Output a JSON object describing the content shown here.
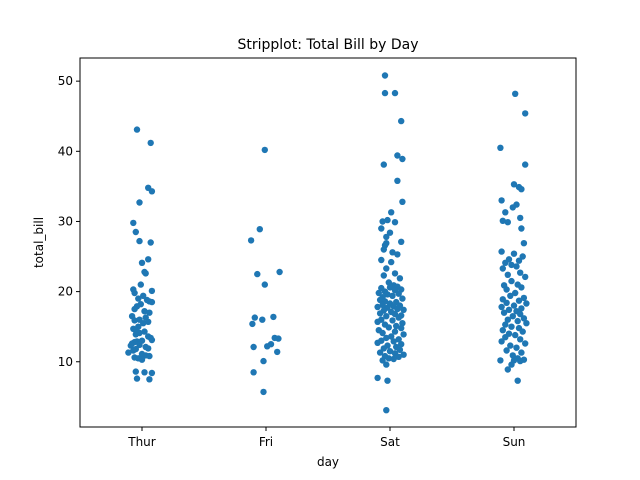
{
  "chart_data": {
    "type": "scatter",
    "subtype": "stripplot",
    "title": "Stripplot: Total Bill by Day",
    "xlabel": "day",
    "ylabel": "total_bill",
    "categories": [
      "Thur",
      "Fri",
      "Sat",
      "Sun"
    ],
    "ylim": [
      0.7,
      53.3
    ],
    "yticks": [
      10,
      20,
      30,
      40,
      50
    ],
    "grid": false,
    "marker_color": "#1f77b4",
    "series": [
      {
        "category": "Thur",
        "points": [
          {
            "o": -0.04,
            "v": 43.1
          },
          {
            "o": 0.07,
            "v": 41.2
          },
          {
            "o": 0.05,
            "v": 34.8
          },
          {
            "o": 0.08,
            "v": 34.3
          },
          {
            "o": -0.02,
            "v": 32.7
          },
          {
            "o": -0.07,
            "v": 29.8
          },
          {
            "o": -0.05,
            "v": 28.5
          },
          {
            "o": -0.02,
            "v": 27.2
          },
          {
            "o": 0.07,
            "v": 27.0
          },
          {
            "o": 0.05,
            "v": 24.6
          },
          {
            "o": 0.0,
            "v": 24.1
          },
          {
            "o": 0.02,
            "v": 22.8
          },
          {
            "o": 0.03,
            "v": 22.6
          },
          {
            "o": -0.01,
            "v": 21.0
          },
          {
            "o": -0.07,
            "v": 20.3
          },
          {
            "o": 0.08,
            "v": 20.1
          },
          {
            "o": -0.06,
            "v": 19.8
          },
          {
            "o": 0.01,
            "v": 19.4
          },
          {
            "o": -0.03,
            "v": 19.0
          },
          {
            "o": 0.04,
            "v": 18.8
          },
          {
            "o": 0.06,
            "v": 18.6
          },
          {
            "o": 0.08,
            "v": 18.5
          },
          {
            "o": -0.01,
            "v": 18.2
          },
          {
            "o": -0.04,
            "v": 17.9
          },
          {
            "o": -0.06,
            "v": 17.5
          },
          {
            "o": 0.02,
            "v": 17.2
          },
          {
            "o": 0.06,
            "v": 17.0
          },
          {
            "o": -0.08,
            "v": 16.5
          },
          {
            "o": 0.03,
            "v": 16.3
          },
          {
            "o": -0.02,
            "v": 16.0
          },
          {
            "o": -0.06,
            "v": 15.9
          },
          {
            "o": 0.05,
            "v": 15.7
          },
          {
            "o": 0.01,
            "v": 15.5
          },
          {
            "o": -0.03,
            "v": 15.0
          },
          {
            "o": -0.07,
            "v": 14.7
          },
          {
            "o": -0.05,
            "v": 14.5
          },
          {
            "o": 0.02,
            "v": 14.3
          },
          {
            "o": -0.02,
            "v": 14.1
          },
          {
            "o": -0.05,
            "v": 13.9
          },
          {
            "o": 0.05,
            "v": 13.6
          },
          {
            "o": 0.07,
            "v": 13.4
          },
          {
            "o": 0.08,
            "v": 13.1
          },
          {
            "o": 0.0,
            "v": 13.0
          },
          {
            "o": -0.04,
            "v": 12.9
          },
          {
            "o": -0.06,
            "v": 12.8
          },
          {
            "o": -0.08,
            "v": 12.6
          },
          {
            "o": -0.02,
            "v": 12.4
          },
          {
            "o": -0.09,
            "v": 12.3
          },
          {
            "o": 0.03,
            "v": 12.1
          },
          {
            "o": 0.05,
            "v": 11.9
          },
          {
            "o": -0.05,
            "v": 11.8
          },
          {
            "o": -0.07,
            "v": 11.6
          },
          {
            "o": -0.11,
            "v": 11.3
          },
          {
            "o": 0.0,
            "v": 11.1
          },
          {
            "o": 0.03,
            "v": 10.9
          },
          {
            "o": 0.06,
            "v": 10.8
          },
          {
            "o": -0.06,
            "v": 10.6
          },
          {
            "o": -0.03,
            "v": 10.5
          },
          {
            "o": 0.0,
            "v": 10.3
          },
          {
            "o": -0.05,
            "v": 8.6
          },
          {
            "o": 0.02,
            "v": 8.5
          },
          {
            "o": 0.08,
            "v": 8.4
          },
          {
            "o": -0.04,
            "v": 7.6
          },
          {
            "o": 0.06,
            "v": 7.5
          }
        ]
      },
      {
        "category": "Fri",
        "points": [
          {
            "o": -0.01,
            "v": 40.2
          },
          {
            "o": -0.05,
            "v": 28.9
          },
          {
            "o": -0.12,
            "v": 27.3
          },
          {
            "o": 0.11,
            "v": 22.8
          },
          {
            "o": -0.07,
            "v": 22.5
          },
          {
            "o": -0.01,
            "v": 21.0
          },
          {
            "o": 0.06,
            "v": 16.4
          },
          {
            "o": -0.09,
            "v": 16.3
          },
          {
            "o": -0.03,
            "v": 16.0
          },
          {
            "o": -0.11,
            "v": 15.4
          },
          {
            "o": 0.07,
            "v": 13.4
          },
          {
            "o": 0.1,
            "v": 13.3
          },
          {
            "o": 0.04,
            "v": 12.5
          },
          {
            "o": 0.01,
            "v": 12.2
          },
          {
            "o": -0.1,
            "v": 12.1
          },
          {
            "o": 0.09,
            "v": 11.4
          },
          {
            "o": -0.02,
            "v": 10.1
          },
          {
            "o": -0.1,
            "v": 8.5
          },
          {
            "o": -0.02,
            "v": 5.7
          }
        ]
      },
      {
        "category": "Sat",
        "points": [
          {
            "o": -0.04,
            "v": 50.8
          },
          {
            "o": -0.04,
            "v": 48.3
          },
          {
            "o": 0.04,
            "v": 48.3
          },
          {
            "o": 0.09,
            "v": 44.3
          },
          {
            "o": 0.06,
            "v": 39.4
          },
          {
            "o": 0.1,
            "v": 38.9
          },
          {
            "o": -0.05,
            "v": 38.1
          },
          {
            "o": 0.06,
            "v": 35.8
          },
          {
            "o": 0.1,
            "v": 32.8
          },
          {
            "o": 0.01,
            "v": 31.3
          },
          {
            "o": -0.02,
            "v": 30.2
          },
          {
            "o": -0.06,
            "v": 30.0
          },
          {
            "o": 0.04,
            "v": 29.9
          },
          {
            "o": -0.07,
            "v": 29.0
          },
          {
            "o": 0.0,
            "v": 28.4
          },
          {
            "o": -0.03,
            "v": 27.8
          },
          {
            "o": 0.09,
            "v": 27.1
          },
          {
            "o": -0.03,
            "v": 26.9
          },
          {
            "o": -0.04,
            "v": 26.6
          },
          {
            "o": -0.05,
            "v": 26.0
          },
          {
            "o": 0.02,
            "v": 25.6
          },
          {
            "o": 0.06,
            "v": 25.3
          },
          {
            "o": -0.07,
            "v": 24.5
          },
          {
            "o": 0.01,
            "v": 24.2
          },
          {
            "o": -0.03,
            "v": 23.3
          },
          {
            "o": 0.04,
            "v": 22.6
          },
          {
            "o": -0.05,
            "v": 22.3
          },
          {
            "o": 0.08,
            "v": 21.9
          },
          {
            "o": -0.01,
            "v": 21.3
          },
          {
            "o": 0.03,
            "v": 20.9
          },
          {
            "o": 0.06,
            "v": 20.7
          },
          {
            "o": 0.0,
            "v": 20.6
          },
          {
            "o": -0.07,
            "v": 20.5
          },
          {
            "o": 0.09,
            "v": 20.3
          },
          {
            "o": 0.04,
            "v": 20.2
          },
          {
            "o": -0.04,
            "v": 20.0
          },
          {
            "o": -0.09,
            "v": 19.8
          },
          {
            "o": 0.07,
            "v": 19.7
          },
          {
            "o": -0.02,
            "v": 19.6
          },
          {
            "o": 0.02,
            "v": 19.4
          },
          {
            "o": -0.06,
            "v": 19.2
          },
          {
            "o": 0.1,
            "v": 19.0
          },
          {
            "o": -0.08,
            "v": 18.8
          },
          {
            "o": -0.04,
            "v": 18.6
          },
          {
            "o": 0.05,
            "v": 18.5
          },
          {
            "o": 0.0,
            "v": 18.3
          },
          {
            "o": -0.06,
            "v": 18.1
          },
          {
            "o": 0.08,
            "v": 18.0
          },
          {
            "o": 0.03,
            "v": 17.9
          },
          {
            "o": -0.1,
            "v": 17.8
          },
          {
            "o": -0.02,
            "v": 17.7
          },
          {
            "o": 0.06,
            "v": 17.5
          },
          {
            "o": 0.11,
            "v": 17.4
          },
          {
            "o": -0.05,
            "v": 17.3
          },
          {
            "o": 0.01,
            "v": 17.1
          },
          {
            "o": -0.08,
            "v": 16.9
          },
          {
            "o": 0.04,
            "v": 16.8
          },
          {
            "o": 0.09,
            "v": 16.6
          },
          {
            "o": -0.03,
            "v": 16.5
          },
          {
            "o": 0.07,
            "v": 16.3
          },
          {
            "o": -0.07,
            "v": 16.0
          },
          {
            "o": 0.02,
            "v": 15.9
          },
          {
            "o": -0.1,
            "v": 15.7
          },
          {
            "o": 0.1,
            "v": 15.5
          },
          {
            "o": -0.04,
            "v": 15.3
          },
          {
            "o": 0.05,
            "v": 15.1
          },
          {
            "o": -0.01,
            "v": 14.9
          },
          {
            "o": 0.09,
            "v": 14.8
          },
          {
            "o": -0.09,
            "v": 14.5
          },
          {
            "o": 0.04,
            "v": 14.3
          },
          {
            "o": -0.06,
            "v": 14.1
          },
          {
            "o": 0.11,
            "v": 13.9
          },
          {
            "o": 0.01,
            "v": 13.6
          },
          {
            "o": -0.03,
            "v": 13.4
          },
          {
            "o": 0.07,
            "v": 13.2
          },
          {
            "o": -0.07,
            "v": 13.0
          },
          {
            "o": 0.03,
            "v": 12.9
          },
          {
            "o": -0.1,
            "v": 12.7
          },
          {
            "o": 0.09,
            "v": 12.5
          },
          {
            "o": -0.02,
            "v": 12.3
          },
          {
            "o": 0.05,
            "v": 12.1
          },
          {
            "o": -0.05,
            "v": 11.9
          },
          {
            "o": 0.08,
            "v": 11.7
          },
          {
            "o": 0.0,
            "v": 11.5
          },
          {
            "o": -0.08,
            "v": 11.3
          },
          {
            "o": 0.04,
            "v": 11.2
          },
          {
            "o": 0.11,
            "v": 11.0
          },
          {
            "o": -0.04,
            "v": 10.8
          },
          {
            "o": 0.07,
            "v": 10.7
          },
          {
            "o": -0.01,
            "v": 10.5
          },
          {
            "o": 0.03,
            "v": 10.4
          },
          {
            "o": -0.06,
            "v": 10.2
          },
          {
            "o": -0.03,
            "v": 9.6
          },
          {
            "o": -0.1,
            "v": 7.7
          },
          {
            "o": -0.02,
            "v": 7.3
          },
          {
            "o": -0.03,
            "v": 3.1
          }
        ]
      },
      {
        "category": "Sun",
        "points": [
          {
            "o": 0.01,
            "v": 48.2
          },
          {
            "o": 0.09,
            "v": 45.4
          },
          {
            "o": -0.11,
            "v": 40.5
          },
          {
            "o": 0.09,
            "v": 38.1
          },
          {
            "o": 0.0,
            "v": 35.3
          },
          {
            "o": 0.04,
            "v": 34.9
          },
          {
            "o": 0.06,
            "v": 34.6
          },
          {
            "o": -0.1,
            "v": 33.0
          },
          {
            "o": 0.02,
            "v": 32.4
          },
          {
            "o": -0.01,
            "v": 32.0
          },
          {
            "o": -0.07,
            "v": 31.3
          },
          {
            "o": 0.05,
            "v": 30.5
          },
          {
            "o": -0.09,
            "v": 30.1
          },
          {
            "o": -0.05,
            "v": 29.9
          },
          {
            "o": 0.06,
            "v": 29.0
          },
          {
            "o": 0.08,
            "v": 26.9
          },
          {
            "o": -0.1,
            "v": 25.7
          },
          {
            "o": 0.0,
            "v": 25.4
          },
          {
            "o": 0.07,
            "v": 25.0
          },
          {
            "o": -0.04,
            "v": 24.6
          },
          {
            "o": 0.04,
            "v": 24.4
          },
          {
            "o": -0.07,
            "v": 24.1
          },
          {
            "o": -0.02,
            "v": 23.8
          },
          {
            "o": 0.02,
            "v": 23.6
          },
          {
            "o": -0.09,
            "v": 23.3
          },
          {
            "o": 0.05,
            "v": 22.7
          },
          {
            "o": -0.05,
            "v": 22.4
          },
          {
            "o": 0.09,
            "v": 22.1
          },
          {
            "o": -0.02,
            "v": 21.5
          },
          {
            "o": 0.03,
            "v": 21.0
          },
          {
            "o": -0.08,
            "v": 20.9
          },
          {
            "o": 0.06,
            "v": 20.6
          },
          {
            "o": -0.06,
            "v": 20.3
          },
          {
            "o": 0.01,
            "v": 19.8
          },
          {
            "o": -0.03,
            "v": 19.4
          },
          {
            "o": 0.08,
            "v": 19.1
          },
          {
            "o": -0.09,
            "v": 18.9
          },
          {
            "o": 0.04,
            "v": 18.7
          },
          {
            "o": -0.06,
            "v": 18.4
          },
          {
            "o": 0.1,
            "v": 18.3
          },
          {
            "o": 0.0,
            "v": 18.0
          },
          {
            "o": -0.1,
            "v": 17.8
          },
          {
            "o": 0.06,
            "v": 17.6
          },
          {
            "o": -0.04,
            "v": 17.4
          },
          {
            "o": 0.02,
            "v": 17.2
          },
          {
            "o": -0.08,
            "v": 17.0
          },
          {
            "o": 0.05,
            "v": 16.8
          },
          {
            "o": -0.01,
            "v": 16.5
          },
          {
            "o": 0.08,
            "v": 16.2
          },
          {
            "o": -0.05,
            "v": 16.0
          },
          {
            "o": 0.03,
            "v": 15.8
          },
          {
            "o": 0.1,
            "v": 15.5
          },
          {
            "o": -0.07,
            "v": 15.3
          },
          {
            "o": -0.02,
            "v": 15.0
          },
          {
            "o": 0.04,
            "v": 14.8
          },
          {
            "o": -0.09,
            "v": 14.5
          },
          {
            "o": 0.07,
            "v": 14.3
          },
          {
            "o": -0.04,
            "v": 14.0
          },
          {
            "o": 0.01,
            "v": 13.8
          },
          {
            "o": -0.07,
            "v": 13.5
          },
          {
            "o": 0.05,
            "v": 13.2
          },
          {
            "o": -0.1,
            "v": 12.9
          },
          {
            "o": 0.09,
            "v": 12.6
          },
          {
            "o": -0.03,
            "v": 12.3
          },
          {
            "o": 0.02,
            "v": 12.0
          },
          {
            "o": -0.06,
            "v": 11.6
          },
          {
            "o": 0.06,
            "v": 11.3
          },
          {
            "o": -0.01,
            "v": 10.9
          },
          {
            "o": 0.03,
            "v": 10.5
          },
          {
            "o": 0.08,
            "v": 10.3
          },
          {
            "o": 0.0,
            "v": 10.2
          },
          {
            "o": -0.11,
            "v": 10.2
          },
          {
            "o": 0.05,
            "v": 10.1
          },
          {
            "o": -0.02,
            "v": 9.6
          },
          {
            "o": -0.05,
            "v": 8.9
          },
          {
            "o": 0.03,
            "v": 7.3
          }
        ]
      }
    ]
  }
}
